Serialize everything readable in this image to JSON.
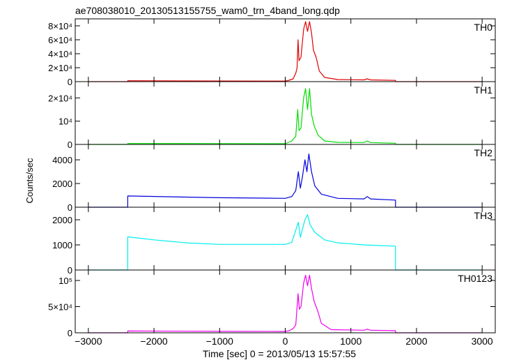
{
  "title": "ae708038010_20130513155755_wam0_trn_4band_long.qdp",
  "chart_data": {
    "type": "line",
    "title": "ae708038010_20130513155755_wam0_trn_4band_long.qdp",
    "xlabel": "Time [sec] 0 = 2013/05/13 15:57:55",
    "ylabel": "Counts/sec",
    "xlim": [
      -3200,
      3200
    ],
    "xticks": [
      -3000,
      -2000,
      -1000,
      0,
      1000,
      2000,
      3000
    ],
    "xtick_labels": [
      "−3000",
      "−2000",
      "−1000",
      "0",
      "1000",
      "2000",
      "3000"
    ],
    "series": [
      {
        "name": "TH0",
        "color": "#e00000",
        "ylim": [
          0,
          90000
        ],
        "yticks": [
          0,
          20000,
          40000,
          60000,
          80000
        ],
        "ytick_labels": [
          "0",
          "2×10⁴",
          "4×10⁴",
          "6×10⁴",
          "8×10⁴"
        ],
        "points": [
          [
            -3000,
            0
          ],
          [
            -2400,
            0
          ],
          [
            -2400,
            1300
          ],
          [
            -1000,
            900
          ],
          [
            0,
            800
          ],
          [
            60,
            2000
          ],
          [
            120,
            4000
          ],
          [
            160,
            12000
          ],
          [
            180,
            20000
          ],
          [
            195,
            60000
          ],
          [
            210,
            30000
          ],
          [
            240,
            35000
          ],
          [
            280,
            75000
          ],
          [
            310,
            86000
          ],
          [
            340,
            72000
          ],
          [
            370,
            86000
          ],
          [
            400,
            70000
          ],
          [
            430,
            45000
          ],
          [
            470,
            35000
          ],
          [
            520,
            15000
          ],
          [
            600,
            6000
          ],
          [
            800,
            3000
          ],
          [
            1200,
            2500
          ],
          [
            1250,
            4000
          ],
          [
            1300,
            2500
          ],
          [
            1680,
            1800
          ],
          [
            1680,
            0
          ],
          [
            3000,
            0
          ]
        ]
      },
      {
        "name": "TH1",
        "color": "#00dd00",
        "ylim": [
          0,
          27000
        ],
        "yticks": [
          0,
          10000,
          20000
        ],
        "ytick_labels": [
          "0",
          "10⁴",
          "2×10⁴"
        ],
        "points": [
          [
            -3000,
            0
          ],
          [
            -2400,
            0
          ],
          [
            -2400,
            400
          ],
          [
            -1000,
            350
          ],
          [
            0,
            300
          ],
          [
            100,
            1500
          ],
          [
            160,
            3500
          ],
          [
            190,
            15000
          ],
          [
            210,
            6000
          ],
          [
            240,
            7000
          ],
          [
            280,
            20000
          ],
          [
            310,
            24000
          ],
          [
            340,
            15000
          ],
          [
            370,
            24000
          ],
          [
            400,
            13000
          ],
          [
            440,
            8000
          ],
          [
            500,
            4000
          ],
          [
            600,
            1500
          ],
          [
            800,
            900
          ],
          [
            1200,
            800
          ],
          [
            1250,
            1500
          ],
          [
            1300,
            800
          ],
          [
            1680,
            500
          ],
          [
            1680,
            0
          ],
          [
            3000,
            0
          ]
        ]
      },
      {
        "name": "TH2",
        "color": "#0000dd",
        "ylim": [
          0,
          5300
        ],
        "yticks": [
          0,
          2000,
          4000
        ],
        "ytick_labels": [
          "0",
          "2000",
          "4000"
        ],
        "points": [
          [
            -3000,
            0
          ],
          [
            -2400,
            0
          ],
          [
            -2400,
            950
          ],
          [
            -1000,
            800
          ],
          [
            0,
            750
          ],
          [
            100,
            900
          ],
          [
            160,
            1400
          ],
          [
            200,
            3000
          ],
          [
            230,
            1600
          ],
          [
            260,
            2500
          ],
          [
            300,
            4000
          ],
          [
            330,
            3000
          ],
          [
            360,
            4500
          ],
          [
            400,
            3000
          ],
          [
            450,
            1800
          ],
          [
            550,
            1100
          ],
          [
            800,
            750
          ],
          [
            1200,
            700
          ],
          [
            1250,
            900
          ],
          [
            1300,
            700
          ],
          [
            1680,
            600
          ],
          [
            1680,
            0
          ],
          [
            3000,
            0
          ]
        ]
      },
      {
        "name": "TH3",
        "color": "#00eeee",
        "ylim": [
          0,
          2500
        ],
        "yticks": [
          0,
          1000,
          2000
        ],
        "ytick_labels": [
          "0",
          "1000",
          "2000"
        ],
        "points": [
          [
            -3000,
            0
          ],
          [
            -2400,
            0
          ],
          [
            -2400,
            1320
          ],
          [
            -2000,
            1200
          ],
          [
            -1500,
            1080
          ],
          [
            -1000,
            1020
          ],
          [
            0,
            1020
          ],
          [
            100,
            1100
          ],
          [
            200,
            1900
          ],
          [
            230,
            1300
          ],
          [
            300,
            2000
          ],
          [
            340,
            2200
          ],
          [
            380,
            1800
          ],
          [
            450,
            1500
          ],
          [
            600,
            1200
          ],
          [
            800,
            1080
          ],
          [
            1200,
            1000
          ],
          [
            1680,
            950
          ],
          [
            1680,
            0
          ],
          [
            3000,
            0
          ]
        ]
      },
      {
        "name": "TH0123",
        "color": "#ee00ee",
        "ylim": [
          0,
          120000
        ],
        "yticks": [
          0,
          50000,
          100000
        ],
        "ytick_labels": [
          "0",
          "5×10⁴",
          "10⁵"
        ],
        "points": [
          [
            -3000,
            0
          ],
          [
            -2400,
            0
          ],
          [
            -2400,
            3500
          ],
          [
            -1000,
            2800
          ],
          [
            0,
            2500
          ],
          [
            60,
            4000
          ],
          [
            120,
            8000
          ],
          [
            160,
            15000
          ],
          [
            195,
            75000
          ],
          [
            215,
            45000
          ],
          [
            240,
            50000
          ],
          [
            280,
            95000
          ],
          [
            310,
            110000
          ],
          [
            340,
            90000
          ],
          [
            370,
            110000
          ],
          [
            400,
            85000
          ],
          [
            440,
            60000
          ],
          [
            500,
            40000
          ],
          [
            550,
            18000
          ],
          [
            700,
            6000
          ],
          [
            1200,
            5000
          ],
          [
            1250,
            7000
          ],
          [
            1300,
            5000
          ],
          [
            1680,
            4000
          ],
          [
            1680,
            0
          ],
          [
            3000,
            0
          ]
        ]
      }
    ]
  }
}
